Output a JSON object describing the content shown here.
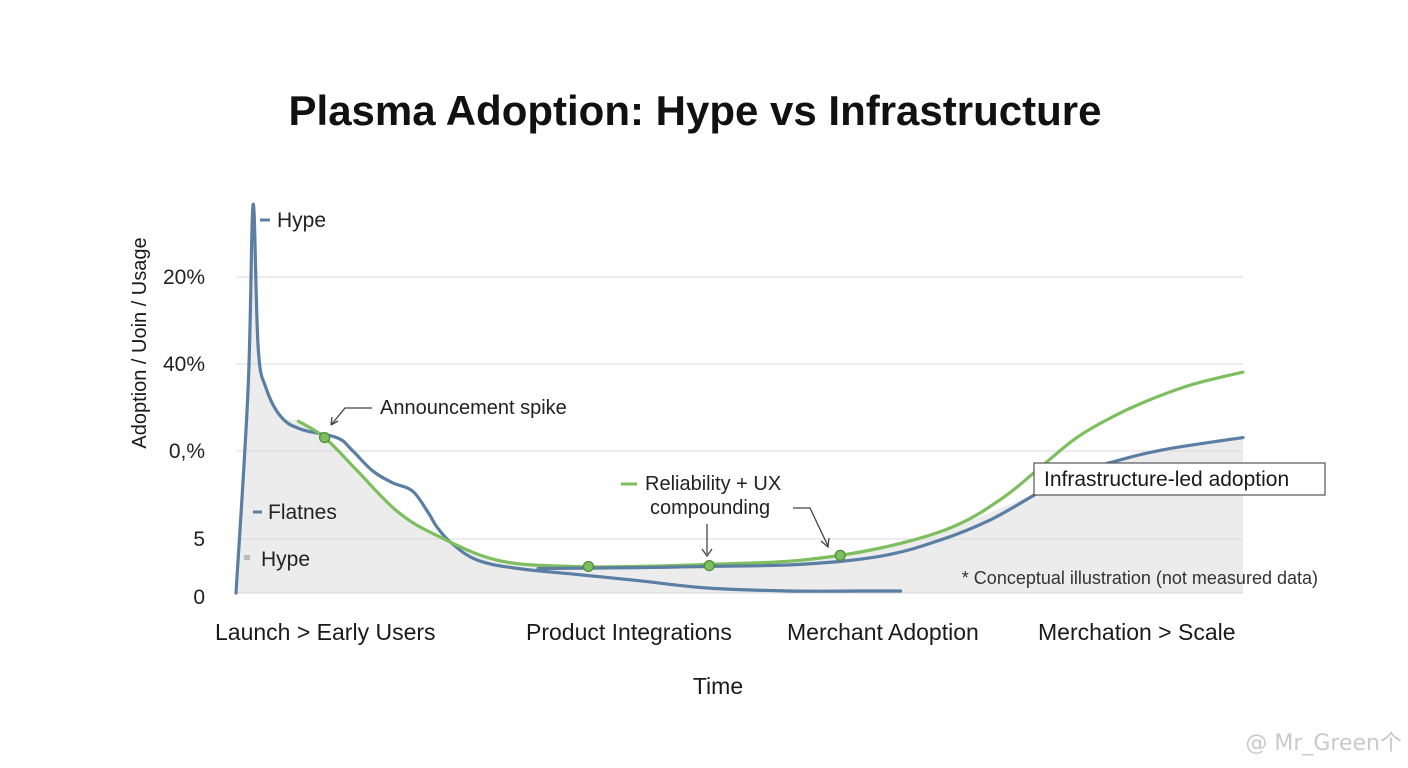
{
  "chart_data": {
    "type": "line",
    "title": "Plasma Adoption: Hype vs Infrastructure",
    "xlabel": "Time",
    "ylabel": "Adoption / Uoin / Usage",
    "categories": [
      "Launch > Early Users",
      "Product Integrations",
      "Merchant Adoption",
      "Merchation > Scale"
    ],
    "y_tick_labels": [
      "0",
      "5",
      "0,%",
      "40%",
      "20%"
    ],
    "x_range": [
      0,
      1
    ],
    "y_range": [
      0,
      1
    ],
    "series": [
      {
        "name": "Hype",
        "color": "#5b7ea3",
        "x": [
          0.0,
          0.012,
          0.017,
          0.022,
          0.03,
          0.045,
          0.065,
          0.1,
          0.115,
          0.135,
          0.155,
          0.175,
          0.19,
          0.2,
          0.215,
          0.24,
          0.28,
          0.34,
          0.4,
          0.47,
          0.55,
          0.62,
          0.66
        ],
        "values": [
          0.0,
          0.5,
          0.95,
          0.6,
          0.5,
          0.43,
          0.4,
          0.38,
          0.35,
          0.3,
          0.27,
          0.25,
          0.2,
          0.16,
          0.12,
          0.08,
          0.06,
          0.045,
          0.03,
          0.012,
          0.005,
          0.005,
          0.005
        ]
      },
      {
        "name": "Reliability + UX compounding",
        "color": "#7dbf5e",
        "x": [
          0.062,
          0.088,
          0.12,
          0.16,
          0.2,
          0.26,
          0.33,
          0.4,
          0.47,
          0.56,
          0.64,
          0.71,
          0.76,
          0.8,
          0.835,
          0.87,
          0.905,
          0.95,
          1.0
        ],
        "values": [
          0.42,
          0.38,
          0.3,
          0.2,
          0.14,
          0.08,
          0.065,
          0.065,
          0.07,
          0.08,
          0.11,
          0.16,
          0.23,
          0.31,
          0.38,
          0.43,
          0.47,
          0.51,
          0.54
        ]
      },
      {
        "name": "Infrastructure-led adoption",
        "color": "#5b7ea3",
        "x": [
          0.3,
          0.4,
          0.47,
          0.56,
          0.64,
          0.7,
          0.75,
          0.8,
          0.83,
          0.87,
          0.92,
          1.0
        ],
        "values": [
          0.06,
          0.062,
          0.065,
          0.07,
          0.09,
          0.13,
          0.18,
          0.25,
          0.29,
          0.32,
          0.35,
          0.38
        ]
      }
    ],
    "markers": [
      {
        "series": "Reliability + UX compounding",
        "x": 0.088,
        "y": 0.38
      },
      {
        "series": "Reliability + UX compounding",
        "x": 0.35,
        "y": 0.065
      },
      {
        "series": "Reliability + UX compounding",
        "x": 0.47,
        "y": 0.067
      },
      {
        "series": "Reliability + UX compounding",
        "x": 0.6,
        "y": 0.092
      }
    ],
    "annotations": [
      "Announcement spike",
      "Reliability + UX",
      "compounding"
    ],
    "legend": [
      {
        "label": "Hype",
        "color": "#5b7ea3"
      },
      {
        "label": "Flatnes",
        "color": "#5b7ea3"
      },
      {
        "label": "Hype",
        "color": "#bbbbbb"
      }
    ],
    "callout": "Infrastructure-led adoption",
    "footnote": "* Conceptual illustration (not measured data)",
    "fill_color": "#ececec",
    "grid": true
  },
  "watermark": "@ Mr_Green个"
}
